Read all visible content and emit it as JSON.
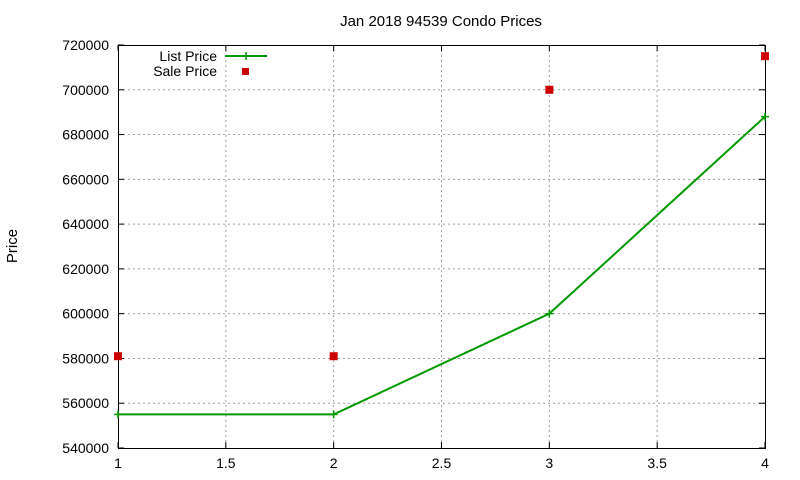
{
  "chart_data": {
    "type": "line",
    "title": "Jan 2018 94539 Condo Prices",
    "xlabel": "",
    "ylabel": "Price",
    "xlim": [
      1,
      4
    ],
    "ylim": [
      540000,
      720000
    ],
    "x_ticks": [
      "1",
      "1.5",
      "2",
      "2.5",
      "3",
      "3.5",
      "4"
    ],
    "y_ticks": [
      "540000",
      "560000",
      "580000",
      "600000",
      "620000",
      "640000",
      "660000",
      "680000",
      "700000",
      "720000"
    ],
    "grid": true,
    "legend_position": "top-left",
    "series": [
      {
        "name": "List Price",
        "style": "line+cross",
        "color": "#009900",
        "x": [
          1,
          2,
          3,
          4
        ],
        "y": [
          555000,
          555000,
          600000,
          688000
        ]
      },
      {
        "name": "Sale Price",
        "style": "square",
        "color": "#cc0000",
        "x": [
          1,
          2,
          3,
          4
        ],
        "y": [
          581000,
          581000,
          700000,
          715000
        ]
      }
    ]
  }
}
